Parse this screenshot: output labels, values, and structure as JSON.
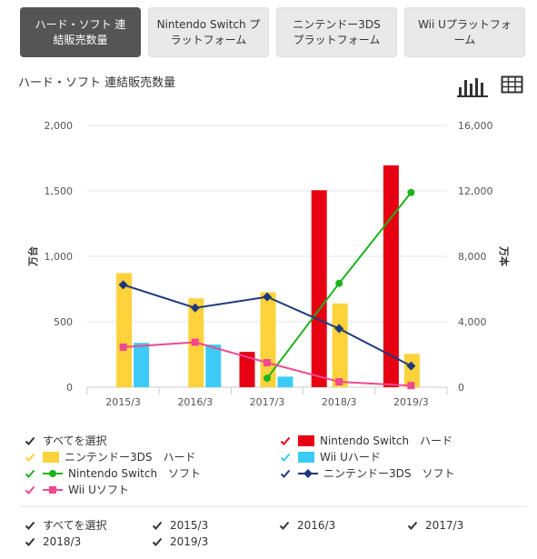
{
  "tabs": [
    {
      "label": "ハード・ソフト 連\n結販売数量",
      "active": true
    },
    {
      "label": "Nintendo Switch プ\nラットフォーム",
      "active": false
    },
    {
      "label": "ニンテンドー3DS\nプラットフォーム",
      "active": false
    },
    {
      "label": "Wii Uプラットフォ\nーム",
      "active": false
    }
  ],
  "icons": {
    "bar_view": "bar-chart-icon",
    "table_view": "table-icon"
  },
  "chart_data": {
    "type": "bar",
    "title": "ハード・ソフト 連結販売数量",
    "categories": [
      "2015/3",
      "2016/3",
      "2017/3",
      "2018/3",
      "2019/3"
    ],
    "y_left": {
      "label": "万台",
      "ylim": [
        0,
        2000
      ],
      "ticks": [
        "0",
        "500",
        "1,000",
        "1,500",
        "2,000"
      ]
    },
    "y_right": {
      "label": "万本",
      "ylim": [
        0,
        16000
      ],
      "ticks": [
        "0",
        "4,000",
        "8,000",
        "12,000",
        "16,000"
      ]
    },
    "series": [
      {
        "name": "Nintendo Switch ハード",
        "kind": "bar",
        "axis": "left",
        "color": "#e60012",
        "values": [
          null,
          null,
          270,
          1505,
          1695
        ]
      },
      {
        "name": "ニンテンドー3DS ハード",
        "kind": "bar",
        "axis": "left",
        "color": "#fdd23a",
        "values": [
          872,
          679,
          726,
          640,
          255
        ]
      },
      {
        "name": "Wii Uハード",
        "kind": "bar",
        "axis": "left",
        "color": "#3ccbf4",
        "values": [
          339,
          326,
          81,
          null,
          null
        ]
      },
      {
        "name": "Nintendo Switch ソフト",
        "kind": "line",
        "axis": "right",
        "color": "#1eb31e",
        "values": [
          null,
          null,
          550,
          6350,
          11900
        ]
      },
      {
        "name": "ニンテンドー3DS ソフト",
        "kind": "line",
        "axis": "right",
        "color": "#1f3a7a",
        "values": [
          6260,
          4850,
          5520,
          3580,
          1300
        ]
      },
      {
        "name": "Wii Uソフト",
        "kind": "line",
        "axis": "right",
        "color": "#f0498f",
        "values": [
          2450,
          2750,
          1500,
          330,
          100
        ]
      }
    ],
    "grid": true
  },
  "legend": {
    "select_all": "すべてを選択",
    "items": [
      {
        "label": "Nintendo Switch　ハード",
        "color": "#e60012",
        "marker": "bar"
      },
      {
        "label": "ニンテンドー3DS　ハード",
        "color": "#fdd23a",
        "marker": "bar"
      },
      {
        "label": "Wii Uハード",
        "color": "#3ccbf4",
        "marker": "bar"
      },
      {
        "label": "Nintendo Switch　ソフト",
        "color": "#1eb31e",
        "marker": "circle"
      },
      {
        "label": "ニンテンドー3DS　ソフト",
        "color": "#1f3a7a",
        "marker": "diamond"
      },
      {
        "label": "Wii Uソフト",
        "color": "#f0498f",
        "marker": "square"
      }
    ]
  },
  "year_filter": {
    "select_all": "すべてを選択",
    "years": [
      "2015/3",
      "2016/3",
      "2017/3",
      "2018/3",
      "2019/3"
    ]
  },
  "colors": {
    "check": "#333333",
    "grid": "#e6e6e6",
    "axis": "#cccccc"
  }
}
